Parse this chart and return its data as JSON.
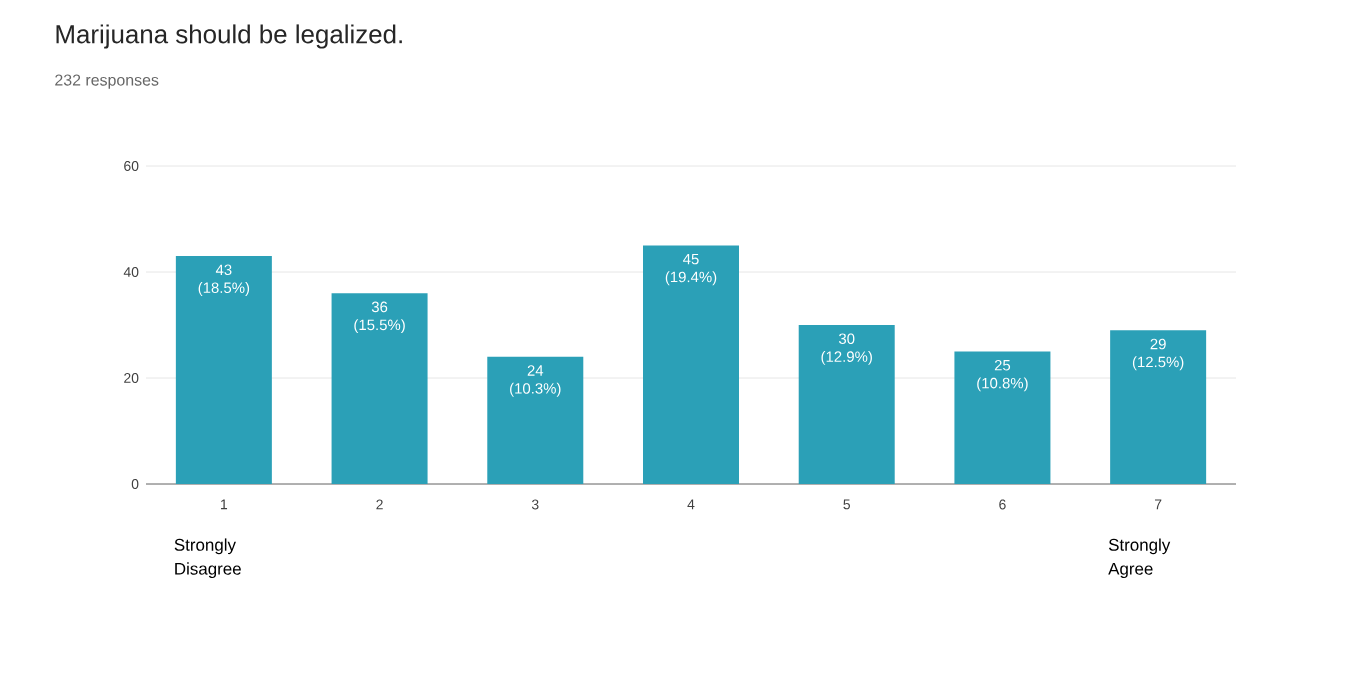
{
  "chart_data": {
    "type": "bar",
    "title": "Marijuana should be legalized.",
    "subtitle": "232 responses",
    "categories": [
      "1",
      "2",
      "3",
      "4",
      "5",
      "6",
      "7"
    ],
    "values": [
      43,
      36,
      24,
      45,
      30,
      25,
      29
    ],
    "value_labels": [
      "43 (18.5%)",
      "36 (15.5%)",
      "24 (10.3%)",
      "45 (19.4%)",
      "30 (12.9%)",
      "25 (10.8%)",
      "29 (12.5%)"
    ],
    "color": "#2ba0b7",
    "ylim": [
      0,
      60
    ],
    "yticks": [
      0,
      20,
      40,
      60
    ],
    "grid": "y",
    "annotations": [
      "Strongly Disagree",
      "Strongly Agree"
    ]
  }
}
